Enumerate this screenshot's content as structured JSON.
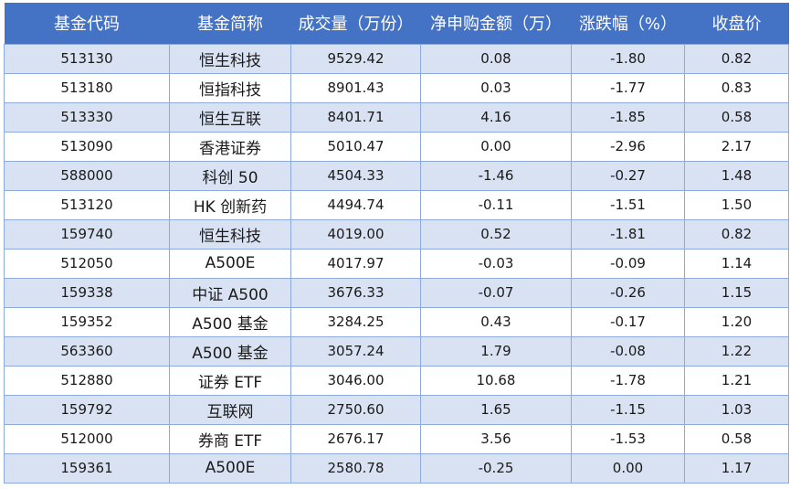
{
  "table": {
    "headers": [
      "基金代码",
      "基金简称",
      "成交量（万份）",
      "净申购金额（万）",
      "涨跌幅（%）",
      "收盘价"
    ],
    "rows": [
      [
        "513130",
        "恒生科技",
        "9529.42",
        "0.08",
        "-1.80",
        "0.82"
      ],
      [
        "513180",
        "恒指科技",
        "8901.43",
        "0.03",
        "-1.77",
        "0.83"
      ],
      [
        "513330",
        "恒生互联",
        "8401.71",
        "4.16",
        "-1.85",
        "0.58"
      ],
      [
        "513090",
        "香港证券",
        "5010.47",
        "0.00",
        "-2.96",
        "2.17"
      ],
      [
        "588000",
        "科创 50",
        "4504.33",
        "-1.46",
        "-0.27",
        "1.48"
      ],
      [
        "513120",
        "HK 创新药",
        "4494.74",
        "-0.11",
        "-1.51",
        "1.50"
      ],
      [
        "159740",
        "恒生科技",
        "4019.00",
        "0.52",
        "-1.81",
        "0.82"
      ],
      [
        "512050",
        "A500E",
        "4017.97",
        "-0.03",
        "-0.09",
        "1.14"
      ],
      [
        "159338",
        "中证 A500",
        "3676.33",
        "-0.07",
        "-0.26",
        "1.15"
      ],
      [
        "159352",
        "A500 基金",
        "3284.25",
        "0.43",
        "-0.17",
        "1.20"
      ],
      [
        "563360",
        "A500 基金",
        "3057.24",
        "1.79",
        "-0.08",
        "1.22"
      ],
      [
        "512880",
        "证券 ETF",
        "3046.00",
        "10.68",
        "-1.78",
        "1.21"
      ],
      [
        "159792",
        "互联网",
        "2750.60",
        "1.65",
        "-1.15",
        "1.03"
      ],
      [
        "512000",
        "券商 ETF",
        "2676.17",
        "3.56",
        "-1.53",
        "0.58"
      ],
      [
        "159361",
        "A500E",
        "2580.78",
        "-0.25",
        "0.00",
        "1.17"
      ]
    ]
  },
  "colors": {
    "header_bg": "#4472c4",
    "header_text": "#ffffff",
    "band_bg": "#d9e2f3",
    "border": "#8ea9db"
  }
}
